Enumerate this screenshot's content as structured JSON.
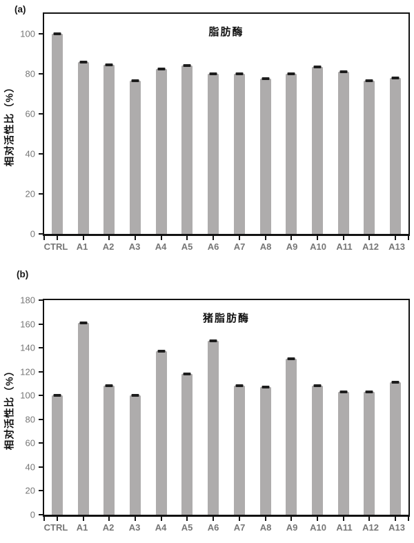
{
  "figure": {
    "background": "#ffffff",
    "panel_a_label": "(a)",
    "panel_b_label": "(b)"
  },
  "chart_data": [
    {
      "type": "bar",
      "panel_label": "(a)",
      "title": "脂肪酶",
      "xlabel": "",
      "ylabel": "相对活性比（%）",
      "categories": [
        "CTRL",
        "A1",
        "A2",
        "A3",
        "A4",
        "A5",
        "A6",
        "A7",
        "A8",
        "A9",
        "A10",
        "A11",
        "A12",
        "A13"
      ],
      "values": [
        100,
        86,
        84.5,
        76.5,
        82.5,
        84,
        80,
        80,
        77.5,
        80,
        83.5,
        81,
        76.5,
        78
      ],
      "error_bar": 1,
      "ylim": [
        0,
        110
      ],
      "yticks": [
        0,
        20,
        40,
        60,
        80,
        100
      ],
      "grid": false,
      "legend": null,
      "bar_color": "#aeacac",
      "error_color": "#1d1d1d",
      "axis_color": "#121212",
      "tick_label_color": "#767676"
    },
    {
      "type": "bar",
      "panel_label": "(b)",
      "title": "猪脂肪酶",
      "xlabel": "",
      "ylabel": "相对活性比（%）",
      "categories": [
        "CTRL",
        "A1",
        "A2",
        "A3",
        "A4",
        "A5",
        "A6",
        "A7",
        "A8",
        "A9",
        "A10",
        "A11",
        "A12",
        "A13"
      ],
      "values": [
        100,
        161,
        108,
        100,
        137,
        118,
        146,
        108,
        107,
        131,
        108,
        103,
        103,
        111
      ],
      "error_bar": 1,
      "ylim": [
        0,
        180
      ],
      "yticks": [
        0,
        20,
        40,
        60,
        80,
        100,
        120,
        140,
        160,
        180
      ],
      "grid": false,
      "legend": null,
      "bar_color": "#aeacac",
      "error_color": "#1d1d1d",
      "axis_color": "#121212",
      "tick_label_color": "#767676"
    }
  ]
}
